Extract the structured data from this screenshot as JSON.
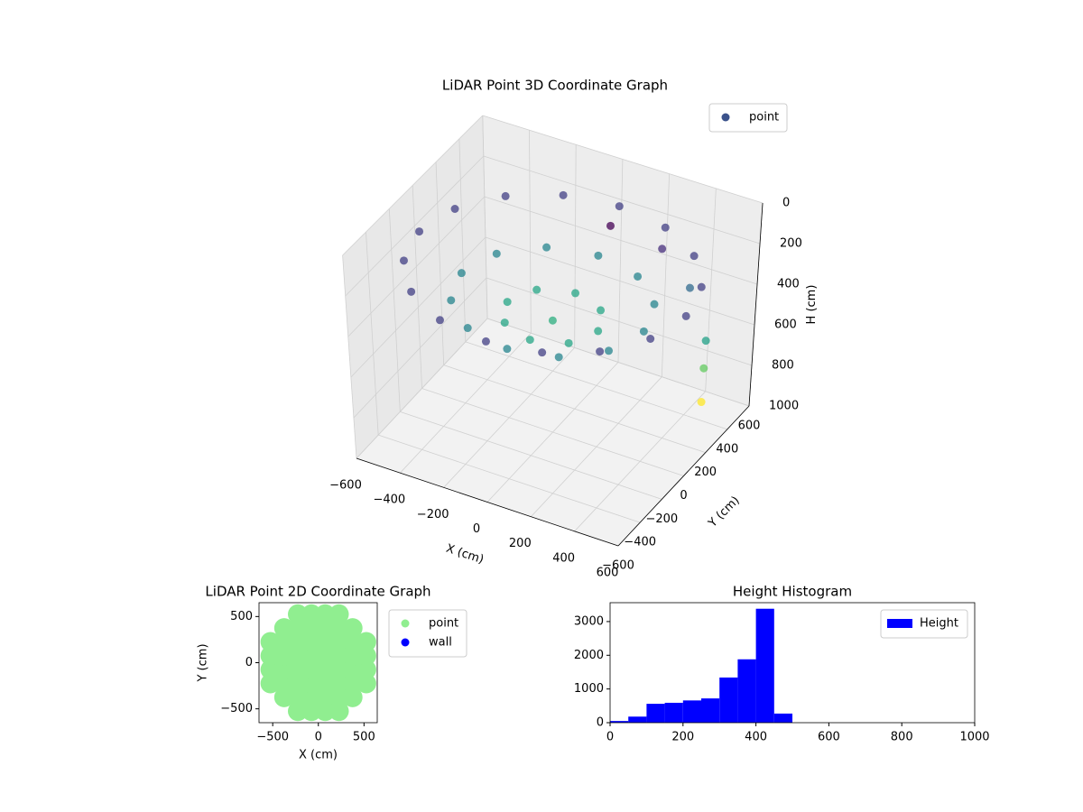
{
  "chart_data": [
    {
      "type": "scatter3d",
      "title": "LiDAR Point 3D Coordinate Graph",
      "xlabel": "X (cm)",
      "ylabel": "Y (cm)",
      "zlabel": "H (cm)",
      "xlim": [
        -600,
        600
      ],
      "ylim": [
        -600,
        600
      ],
      "zlim": [
        0,
        1000
      ],
      "z_inverted": true,
      "xticks": [
        {
          "value": -600,
          "label": "−600"
        },
        {
          "value": -400,
          "label": "−400"
        },
        {
          "value": -200,
          "label": "−200"
        },
        0,
        200,
        400,
        600
      ],
      "yticks": [
        {
          "value": -600,
          "label": "−600"
        },
        {
          "value": -400,
          "label": "−400"
        },
        {
          "value": -200,
          "label": "−200"
        },
        0,
        200,
        400,
        600
      ],
      "zticks": [
        0,
        200,
        400,
        600,
        800,
        1000
      ],
      "grid": true,
      "legend": "upper right",
      "colormap": "viridis",
      "series": [
        {
          "name": "point",
          "color": "#3b528b",
          "x": [
            580,
            536,
            410,
            222,
            0,
            -222,
            -410,
            -536,
            -580,
            -536,
            -410,
            -222,
            0,
            222,
            410,
            536,
            400,
            346,
            200,
            0,
            -200,
            -346,
            -400,
            -346,
            -200,
            0,
            200,
            346,
            200,
            141,
            0,
            -141,
            -200,
            -141,
            0,
            141,
            0,
            100,
            300,
            450,
            600,
            620,
            640
          ],
          "y": [
            0,
            222,
            410,
            536,
            580,
            536,
            410,
            222,
            0,
            -222,
            -410,
            -536,
            -580,
            -536,
            -410,
            -222,
            0,
            200,
            346,
            400,
            346,
            200,
            0,
            -200,
            -346,
            -400,
            -346,
            -200,
            0,
            141,
            200,
            141,
            0,
            -141,
            -200,
            -141,
            0,
            300,
            350,
            300,
            150,
            100,
            50
          ],
          "z": [
            220,
            220,
            220,
            220,
            220,
            220,
            220,
            220,
            220,
            220,
            220,
            220,
            220,
            220,
            220,
            220,
            360,
            360,
            360,
            360,
            360,
            360,
            360,
            360,
            360,
            360,
            360,
            360,
            430,
            430,
            430,
            430,
            430,
            430,
            430,
            430,
            450,
            120,
            190,
            300,
            420,
            520,
            650
          ]
        }
      ]
    },
    {
      "type": "scatter",
      "title": "LiDAR Point 2D Coordinate Graph",
      "xlabel": "X (cm)",
      "ylabel": "Y (cm)",
      "xlim": [
        -650,
        645
      ],
      "ylim": [
        -650,
        650
      ],
      "xticks": [
        {
          "value": -500,
          "label": "−500"
        },
        0,
        500
      ],
      "yticks": [
        {
          "value": -500,
          "label": "−500"
        },
        0,
        500
      ],
      "legend": "outside right",
      "series": [
        {
          "name": "point",
          "color": "#90ee90",
          "x": [
            -225,
            -75,
            75,
            225,
            -375,
            -225,
            -75,
            75,
            225,
            375,
            -525,
            -375,
            -225,
            -75,
            75,
            225,
            375,
            525,
            -525,
            -375,
            -225,
            -75,
            75,
            225,
            375,
            525,
            -525,
            -375,
            -225,
            -75,
            75,
            225,
            375,
            525,
            -525,
            -375,
            -225,
            -75,
            75,
            225,
            375,
            525,
            -375,
            -225,
            -75,
            75,
            225,
            375,
            -225,
            -75,
            75,
            225
          ],
          "y": [
            -525,
            -525,
            -525,
            -525,
            -375,
            -375,
            -375,
            -375,
            -375,
            -375,
            -225,
            -225,
            -225,
            -225,
            -225,
            -225,
            -225,
            -225,
            -75,
            -75,
            -75,
            -75,
            -75,
            -75,
            -75,
            -75,
            75,
            75,
            75,
            75,
            75,
            75,
            75,
            75,
            225,
            225,
            225,
            225,
            225,
            225,
            225,
            225,
            375,
            375,
            375,
            375,
            375,
            375,
            525,
            525,
            525,
            525
          ]
        },
        {
          "name": "wall",
          "color": "#0000ff",
          "x": [],
          "y": []
        }
      ]
    },
    {
      "type": "histogram",
      "title": "Height Histogram",
      "name": "Height",
      "color": "#0000ff",
      "bins": [
        0,
        50,
        100,
        150,
        200,
        250,
        300,
        350,
        400,
        450,
        500,
        550,
        600,
        650,
        700,
        750,
        800,
        850,
        900,
        950,
        1000
      ],
      "counts": [
        50,
        180,
        560,
        590,
        660,
        720,
        1340,
        1880,
        3380,
        270,
        0,
        0,
        0,
        0,
        0,
        0,
        0,
        0,
        0,
        0
      ],
      "xlim": [
        0,
        1000
      ],
      "ylim": [
        0,
        3560
      ],
      "xticks": [
        0,
        200,
        400,
        600,
        800,
        1000
      ],
      "yticks": [
        0,
        1000,
        2000,
        3000
      ],
      "legend": "upper right"
    }
  ]
}
